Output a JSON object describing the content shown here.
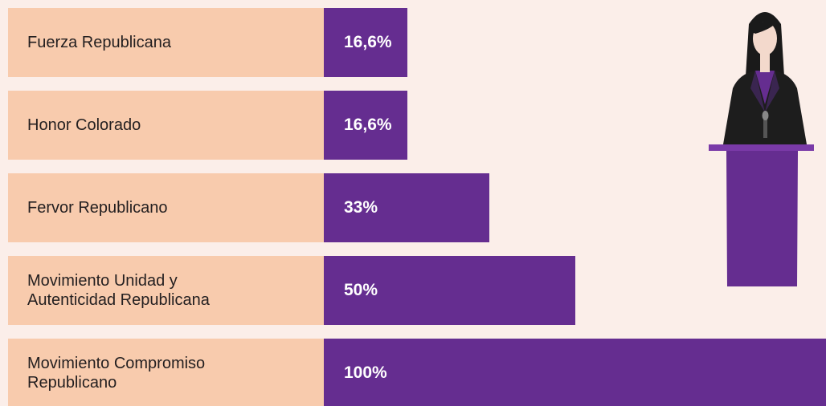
{
  "chart_data": {
    "type": "bar",
    "orientation": "horizontal",
    "categories": [
      "Fuerza Republicana",
      "Honor Colorado",
      "Fervor Republicano",
      "Movimiento Unidad y Autenticidad Republicana",
      "Movimiento Compromiso Republicano"
    ],
    "values": [
      16.6,
      16.6,
      33,
      50,
      100
    ],
    "value_labels": [
      "16,6%",
      "16,6%",
      "33%",
      "50%",
      "100%"
    ],
    "color": "#652d90",
    "label_color": "#f8cbad"
  }
}
